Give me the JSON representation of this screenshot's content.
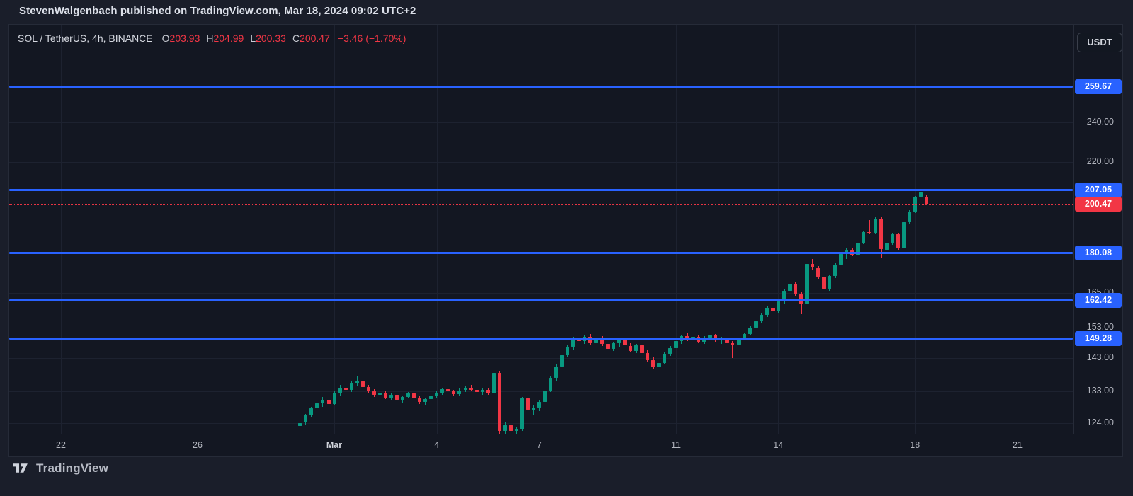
{
  "header": {
    "byline": "StevenWalgenbach published on TradingView.com, Mar 18, 2024 09:02 UTC+2"
  },
  "legend": {
    "symbol": "SOL / TetherUS, 4h, BINANCE",
    "ohlc": [
      {
        "label": "O",
        "value": "203.93"
      },
      {
        "label": "H",
        "value": "204.99"
      },
      {
        "label": "L",
        "value": "200.33"
      },
      {
        "label": "C",
        "value": "200.47"
      }
    ],
    "change": "−3.46 (−1.70%)"
  },
  "price_scale": {
    "currency": "USDT",
    "ticks": [
      "240.00",
      "220.00",
      "165.00",
      "153.00",
      "143.00",
      "133.00",
      "124.00"
    ],
    "level_badges": [
      "259.67",
      "207.05",
      "180.08",
      "162.42",
      "149.28"
    ],
    "last_price_badge": "200.47"
  },
  "footer": {
    "brand": "TradingView"
  },
  "colors": {
    "accent_blue": "#2962ff",
    "down_red": "#f23645",
    "up_green": "#089981"
  },
  "chart_data": {
    "type": "candlestick",
    "title": "SOL / TetherUS",
    "interval": "4h",
    "exchange": "BINANCE",
    "y_scale": "logarithmic",
    "ylim": [
      120,
      265
    ],
    "grid": true,
    "horizontal_levels": [
      259.67,
      207.05,
      180.08,
      162.42,
      149.28
    ],
    "last_price": 200.47,
    "y_ticks": [
      240,
      220,
      165,
      153,
      143,
      133,
      124
    ],
    "x_tick_labels": [
      {
        "label": "22",
        "day": 0
      },
      {
        "label": "26",
        "day": 4
      },
      {
        "label": "Mar",
        "day": 8
      },
      {
        "label": "4",
        "day": 11
      },
      {
        "label": "7",
        "day": 14
      },
      {
        "label": "11",
        "day": 18
      },
      {
        "label": "14",
        "day": 21
      },
      {
        "label": "18",
        "day": 25
      },
      {
        "label": "21",
        "day": 28
      }
    ],
    "series_start_day_offset": 7,
    "candles_per_day": 6,
    "candles": [
      [
        123.2,
        124.6,
        121.9,
        124.1
      ],
      [
        124.1,
        126.6,
        123.7,
        126.2
      ],
      [
        126.2,
        128.6,
        125.6,
        128.1
      ],
      [
        128.1,
        130.2,
        127.4,
        129.6
      ],
      [
        129.6,
        131.3,
        128.6,
        130.6
      ],
      [
        130.6,
        131.2,
        128.9,
        129.3
      ],
      [
        129.3,
        133.0,
        129.0,
        132.6
      ],
      [
        132.6,
        134.8,
        131.8,
        134.0
      ],
      [
        134.0,
        135.9,
        132.9,
        133.4
      ],
      [
        133.4,
        136.1,
        132.8,
        135.2
      ],
      [
        135.2,
        137.6,
        134.6,
        136.0
      ],
      [
        136.0,
        136.4,
        133.8,
        134.2
      ],
      [
        134.2,
        134.9,
        132.5,
        133.0
      ],
      [
        133.0,
        133.6,
        131.4,
        131.9
      ],
      [
        131.9,
        133.2,
        131.2,
        132.5
      ],
      [
        132.5,
        132.9,
        130.8,
        131.2
      ],
      [
        131.2,
        132.4,
        130.4,
        131.9
      ],
      [
        131.9,
        132.2,
        130.1,
        130.6
      ],
      [
        130.6,
        131.8,
        129.8,
        131.4
      ],
      [
        131.4,
        132.8,
        130.9,
        132.3
      ],
      [
        132.3,
        132.7,
        130.6,
        131.0
      ],
      [
        131.0,
        131.5,
        129.4,
        129.9
      ],
      [
        129.9,
        131.2,
        129.2,
        130.8
      ],
      [
        130.8,
        132.0,
        130.2,
        131.5
      ],
      [
        131.5,
        133.0,
        131.0,
        132.6
      ],
      [
        132.6,
        134.1,
        132.0,
        133.6
      ],
      [
        133.6,
        134.4,
        132.4,
        132.9
      ],
      [
        132.9,
        133.5,
        131.6,
        132.1
      ],
      [
        132.1,
        133.8,
        131.8,
        133.3
      ],
      [
        133.3,
        134.6,
        132.7,
        134.0
      ],
      [
        134.0,
        134.8,
        132.9,
        133.4
      ],
      [
        133.4,
        134.2,
        132.2,
        132.7
      ],
      [
        132.7,
        133.9,
        132.0,
        133.5
      ],
      [
        133.5,
        134.0,
        131.9,
        132.4
      ],
      [
        132.4,
        139.0,
        131.8,
        138.5
      ],
      [
        138.5,
        139.2,
        120.4,
        121.8
      ],
      [
        121.8,
        124.2,
        120.9,
        123.4
      ],
      [
        123.4,
        124.0,
        121.2,
        121.9
      ],
      [
        121.9,
        122.9,
        120.8,
        122.2
      ],
      [
        122.2,
        131.4,
        121.9,
        130.9
      ],
      [
        130.9,
        131.2,
        127.2,
        127.8
      ],
      [
        127.8,
        128.9,
        126.3,
        128.3
      ],
      [
        128.3,
        130.5,
        127.4,
        130.0
      ],
      [
        130.0,
        133.8,
        129.6,
        133.2
      ],
      [
        133.2,
        137.5,
        132.8,
        136.9
      ],
      [
        136.9,
        141.0,
        136.2,
        140.4
      ],
      [
        140.4,
        144.6,
        139.8,
        144.0
      ],
      [
        144.0,
        147.4,
        143.2,
        146.6
      ],
      [
        146.6,
        149.8,
        145.7,
        149.2
      ],
      [
        149.2,
        151.3,
        147.9,
        148.5
      ],
      [
        148.5,
        150.6,
        147.6,
        150.0
      ],
      [
        150.0,
        150.8,
        147.2,
        147.8
      ],
      [
        147.8,
        149.9,
        146.8,
        149.3
      ],
      [
        149.3,
        150.2,
        146.9,
        147.5
      ],
      [
        147.5,
        148.9,
        145.4,
        146.0
      ],
      [
        146.0,
        148.2,
        145.2,
        147.7
      ],
      [
        147.7,
        149.6,
        146.6,
        149.0
      ],
      [
        149.0,
        149.9,
        146.4,
        147.0
      ],
      [
        147.0,
        147.8,
        144.8,
        145.4
      ],
      [
        145.4,
        147.6,
        144.6,
        147.1
      ],
      [
        147.1,
        147.7,
        144.1,
        144.7
      ],
      [
        144.7,
        145.5,
        141.9,
        142.5
      ],
      [
        142.5,
        143.4,
        139.5,
        140.1
      ],
      [
        140.1,
        142.2,
        137.3,
        141.6
      ],
      [
        141.6,
        144.9,
        141.0,
        144.4
      ],
      [
        144.4,
        146.8,
        143.8,
        146.2
      ],
      [
        146.2,
        148.9,
        145.6,
        148.4
      ],
      [
        148.4,
        150.7,
        147.6,
        150.1
      ],
      [
        150.1,
        151.2,
        148.6,
        149.2
      ],
      [
        149.2,
        150.5,
        148.0,
        149.9
      ],
      [
        149.9,
        150.4,
        147.7,
        148.3
      ],
      [
        148.3,
        150.1,
        147.5,
        149.6
      ],
      [
        149.6,
        151.0,
        148.4,
        150.4
      ],
      [
        150.4,
        150.9,
        148.1,
        148.7
      ],
      [
        148.7,
        149.8,
        147.6,
        149.3
      ],
      [
        149.3,
        150.0,
        147.4,
        147.9
      ],
      [
        147.9,
        148.6,
        143.1,
        147.4
      ],
      [
        147.4,
        149.9,
        146.9,
        149.4
      ],
      [
        149.4,
        151.4,
        148.8,
        150.9
      ],
      [
        150.9,
        153.4,
        150.3,
        152.9
      ],
      [
        152.9,
        155.6,
        152.2,
        155.0
      ],
      [
        155.0,
        157.8,
        154.4,
        157.2
      ],
      [
        157.2,
        160.3,
        156.6,
        159.7
      ],
      [
        159.7,
        160.9,
        157.9,
        158.4
      ],
      [
        158.4,
        162.4,
        157.8,
        161.9
      ],
      [
        161.9,
        166.3,
        161.2,
        165.7
      ],
      [
        165.7,
        168.9,
        164.8,
        168.3
      ],
      [
        168.3,
        169.0,
        163.9,
        164.5
      ],
      [
        164.5,
        165.2,
        157.6,
        161.3
      ],
      [
        161.3,
        176.4,
        160.8,
        175.8
      ],
      [
        175.8,
        177.9,
        173.6,
        174.4
      ],
      [
        174.4,
        175.2,
        170.3,
        171.0
      ],
      [
        171.0,
        172.1,
        165.8,
        166.5
      ],
      [
        166.5,
        171.9,
        165.9,
        171.3
      ],
      [
        171.3,
        176.2,
        170.6,
        175.6
      ],
      [
        175.6,
        180.4,
        174.9,
        179.8
      ],
      [
        179.8,
        181.9,
        177.7,
        181.2
      ],
      [
        181.2,
        182.3,
        178.9,
        179.5
      ],
      [
        179.5,
        184.8,
        178.9,
        184.2
      ],
      [
        184.2,
        189.3,
        183.6,
        188.7
      ],
      [
        188.7,
        193.8,
        187.6,
        188.2
      ],
      [
        188.2,
        194.9,
        187.7,
        194.4
      ],
      [
        194.4,
        195.1,
        178.3,
        181.6
      ],
      [
        181.6,
        184.9,
        179.7,
        184.3
      ],
      [
        184.3,
        188.4,
        183.4,
        187.8
      ],
      [
        187.8,
        188.5,
        181.1,
        181.9
      ],
      [
        181.9,
        193.4,
        181.3,
        192.8
      ],
      [
        192.8,
        197.9,
        192.1,
        197.3
      ],
      [
        197.3,
        204.2,
        196.8,
        203.9
      ],
      [
        203.9,
        207.05,
        202.9,
        205.9
      ],
      [
        203.93,
        204.99,
        200.33,
        200.47
      ]
    ]
  }
}
